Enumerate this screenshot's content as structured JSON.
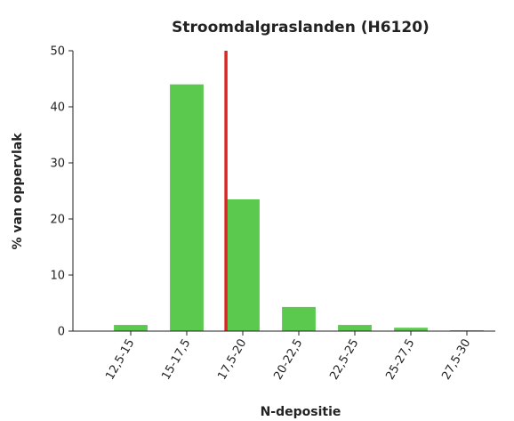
{
  "chart_data": {
    "type": "bar",
    "title": "Stroomdalgraslanden (H6120)",
    "x_label": "N-depositie",
    "y_label": "% van oppervlak",
    "categories": [
      "12,5-15",
      "15-17,5",
      "17,5-20",
      "20-22,5",
      "22,5-25",
      "25-27,5",
      "27,5-30"
    ],
    "bins": [
      12.5,
      15,
      17.5,
      20,
      22.5,
      25,
      27.5,
      30
    ],
    "values": [
      1.1,
      44,
      23.5,
      4.3,
      1.1,
      0.6,
      0.15
    ],
    "color": "#5ac94e",
    "threshold": 18,
    "threshold_color": "#e02424",
    "ylim": [
      0,
      50
    ],
    "yticks": [
      0,
      10,
      20,
      30,
      40,
      50
    ]
  }
}
